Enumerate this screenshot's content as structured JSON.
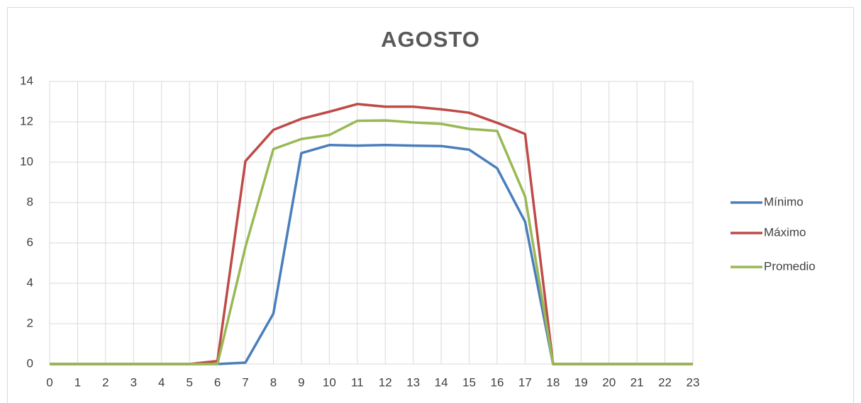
{
  "chart_data": {
    "type": "line",
    "title": "AGOSTO",
    "x": [
      0,
      1,
      2,
      3,
      4,
      5,
      6,
      7,
      8,
      9,
      10,
      11,
      12,
      13,
      14,
      15,
      16,
      17,
      18,
      19,
      20,
      21,
      22,
      23
    ],
    "xlim": [
      0,
      23
    ],
    "xticks": [
      0,
      1,
      2,
      3,
      4,
      5,
      6,
      7,
      8,
      9,
      10,
      11,
      12,
      13,
      14,
      15,
      16,
      17,
      18,
      19,
      20,
      21,
      22,
      23
    ],
    "ylim": [
      0,
      14
    ],
    "yticks": [
      0,
      2,
      4,
      6,
      8,
      10,
      12,
      14
    ],
    "grid": true,
    "legend": "right",
    "series": [
      {
        "name": "Mínimo",
        "color": "#4a7ebb",
        "values": [
          0,
          0,
          0,
          0,
          0,
          0,
          0,
          0.07,
          2.5,
          10.45,
          10.85,
          10.82,
          10.85,
          10.82,
          10.8,
          10.62,
          9.7,
          7.05,
          0,
          0,
          0,
          0,
          0,
          0
        ]
      },
      {
        "name": "Máximo",
        "color": "#be4b48",
        "values": [
          0,
          0,
          0,
          0,
          0,
          0,
          0.15,
          10.05,
          11.6,
          12.15,
          12.5,
          12.88,
          12.75,
          12.75,
          12.62,
          12.45,
          11.95,
          11.4,
          0,
          0,
          0,
          0,
          0,
          0
        ]
      },
      {
        "name": "Promedio",
        "color": "#98b954",
        "values": [
          0,
          0,
          0,
          0,
          0,
          0,
          0,
          5.8,
          10.65,
          11.15,
          11.35,
          12.05,
          12.07,
          11.97,
          11.9,
          11.65,
          11.55,
          8.3,
          0,
          0,
          0,
          0,
          0,
          0
        ]
      }
    ]
  }
}
